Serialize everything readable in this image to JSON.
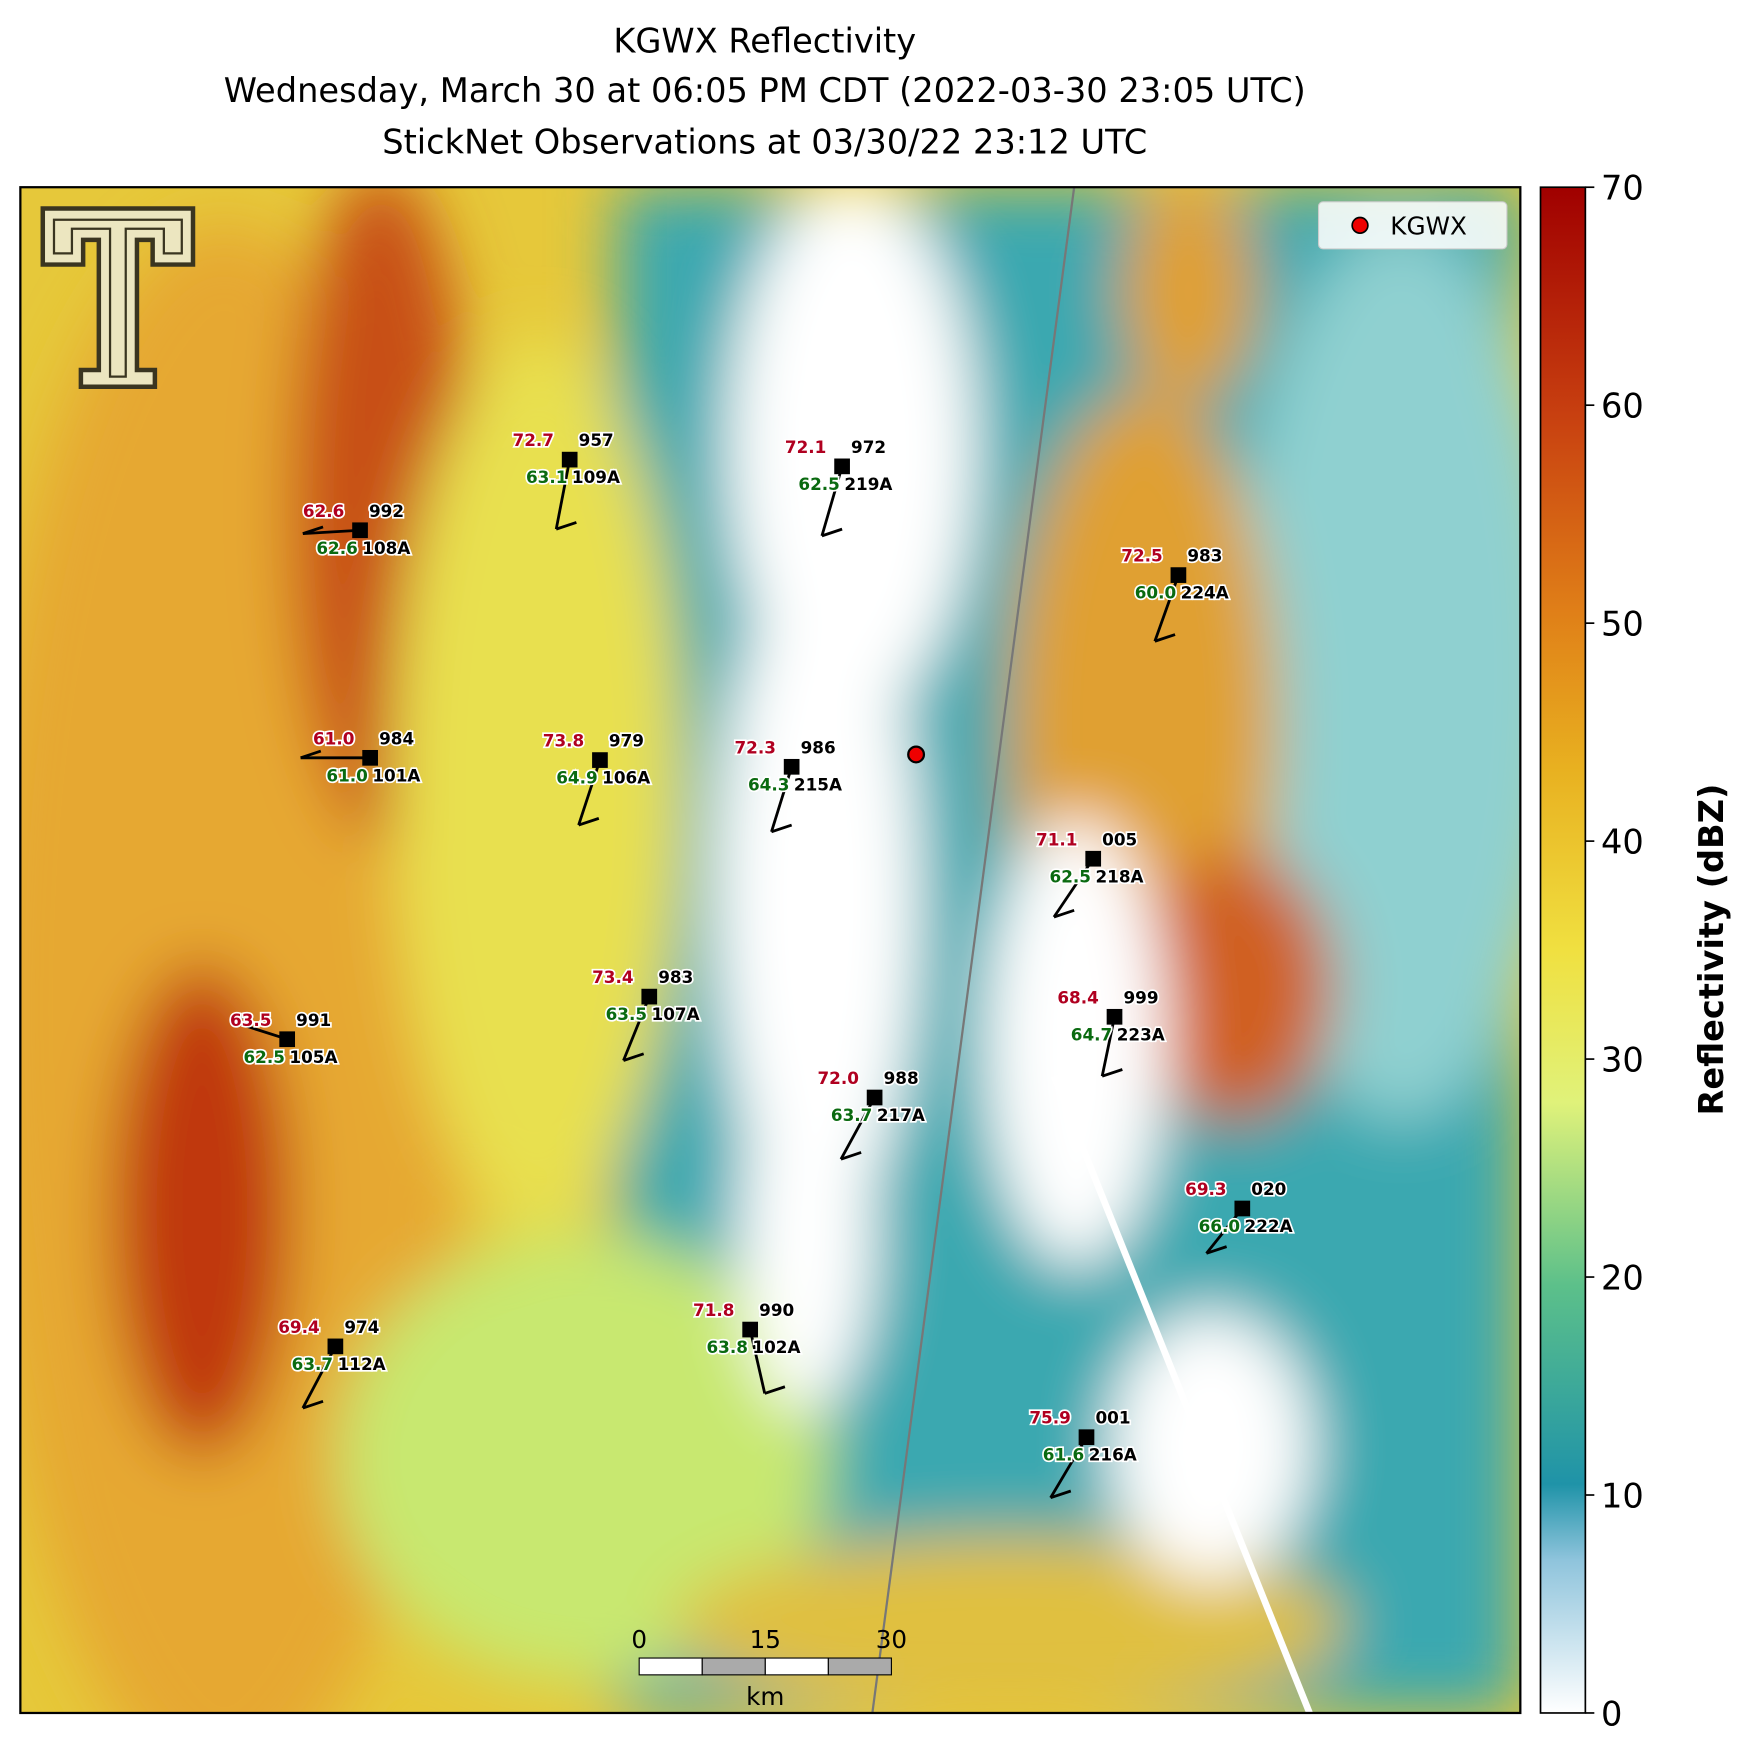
{
  "header": {
    "title": [
      "KGWX Reflectivity",
      "Wednesday, March 30 at 06:05 PM CDT (2022-03-30 23:05 UTC)",
      "StickNet Observations at 03/30/22 23:12 UTC"
    ]
  },
  "legend": {
    "label": "KGWX"
  },
  "colorbar": {
    "label": "Reflectivity (dBZ)",
    "lim": [
      0,
      70
    ],
    "ticks": [
      0,
      10,
      20,
      30,
      40,
      50,
      60,
      70
    ]
  },
  "scale_bar": {
    "ticks": [
      0,
      15,
      30
    ],
    "unit": "km"
  },
  "stations": [
    {
      "id": "109A",
      "temperature": "72.7",
      "dewpoint": "63.1",
      "pressure": "957"
    },
    {
      "id": "219A",
      "temperature": "72.1",
      "dewpoint": "62.5",
      "pressure": "972"
    },
    {
      "id": "108A",
      "temperature": "62.6",
      "dewpoint": "62.6",
      "pressure": "992"
    },
    {
      "id": "224A",
      "temperature": "72.5",
      "dewpoint": "60.0",
      "pressure": "983"
    },
    {
      "id": "101A",
      "temperature": "61.0",
      "dewpoint": "61.0",
      "pressure": "984"
    },
    {
      "id": "106A",
      "temperature": "73.8",
      "dewpoint": "64.9",
      "pressure": "979"
    },
    {
      "id": "215A",
      "temperature": "72.3",
      "dewpoint": "64.3",
      "pressure": "986"
    },
    {
      "id": "218A",
      "temperature": "71.1",
      "dewpoint": "62.5",
      "pressure": "005"
    },
    {
      "id": "107A",
      "temperature": "73.4",
      "dewpoint": "63.5",
      "pressure": "983"
    },
    {
      "id": "105A",
      "temperature": "63.5",
      "dewpoint": "62.5",
      "pressure": "991"
    },
    {
      "id": "223A",
      "temperature": "68.4",
      "dewpoint": "64.7",
      "pressure": "999"
    },
    {
      "id": "217A",
      "temperature": "72.0",
      "dewpoint": "63.7",
      "pressure": "988"
    },
    {
      "id": "222A",
      "temperature": "69.3",
      "dewpoint": "66.0",
      "pressure": "020"
    },
    {
      "id": "112A",
      "temperature": "69.4",
      "dewpoint": "63.7",
      "pressure": "974"
    },
    {
      "id": "102A",
      "temperature": "71.8",
      "dewpoint": "63.8",
      "pressure": "990"
    },
    {
      "id": "216A",
      "temperature": "75.9",
      "dewpoint": "61.6",
      "pressure": "001"
    }
  ]
}
